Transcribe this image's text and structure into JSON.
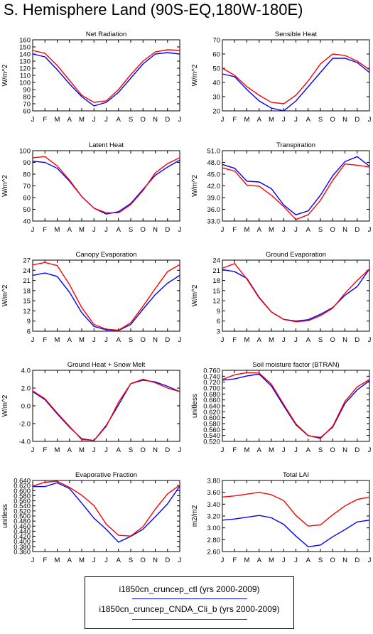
{
  "title": "S. Hemisphere Land (90S-EQ,180W-180E)",
  "colors": {
    "ctl": "#0000ff",
    "cnda": "#ff0000"
  },
  "legend": [
    {
      "label": "i1850cn_cruncep_ctl (yrs 2000-2009)",
      "color": "#0000ff"
    },
    {
      "label": "i1850cn_cruncep_CNDA_Cli_b (yrs 2000-2009)",
      "color": "#ff0000"
    }
  ],
  "chart_data": [
    {
      "type": "line",
      "title": "Net Radiation",
      "ylabel": "W/m^2",
      "yticks": [
        "60",
        "70",
        "80",
        "90",
        "100",
        "110",
        "120",
        "130",
        "140",
        "150",
        "160"
      ],
      "ylim": [
        60,
        160
      ],
      "x": [
        "J",
        "F",
        "M",
        "A",
        "M",
        "J",
        "J",
        "A",
        "S",
        "O",
        "N",
        "D",
        "J"
      ],
      "series": [
        {
          "values": [
            140,
            136,
            118,
            98,
            80,
            67,
            72,
            86,
            106,
            126,
            140,
            142,
            140
          ]
        },
        {
          "values": [
            145,
            141,
            124,
            103,
            82,
            72,
            74,
            90,
            111,
            130,
            143,
            146,
            145
          ]
        }
      ]
    },
    {
      "type": "line",
      "title": "Sensible Heat",
      "ylabel": "W/m^2",
      "yticks": [
        "20",
        "30",
        "40",
        "50",
        "60",
        "70"
      ],
      "ylim": [
        20,
        70
      ],
      "x": [
        "J",
        "F",
        "M",
        "A",
        "M",
        "J",
        "J",
        "A",
        "S",
        "O",
        "N",
        "D",
        "J"
      ],
      "series": [
        {
          "values": [
            46,
            44,
            35,
            27,
            22,
            20,
            27,
            37,
            47,
            57,
            57,
            54,
            47
          ]
        },
        {
          "values": [
            50,
            45,
            37,
            31,
            26,
            25,
            31,
            41,
            53,
            60,
            59,
            55,
            49
          ]
        }
      ]
    },
    {
      "type": "line",
      "title": "Latent Heat",
      "ylabel": "W/m^2",
      "yticks": [
        "40",
        "50",
        "60",
        "70",
        "80",
        "90",
        "100"
      ],
      "ylim": [
        40,
        100
      ],
      "x": [
        "J",
        "F",
        "M",
        "A",
        "M",
        "J",
        "J",
        "A",
        "S",
        "O",
        "N",
        "D",
        "J"
      ],
      "series": [
        {
          "values": [
            91,
            90,
            85,
            74,
            61,
            51,
            46,
            48,
            55,
            67,
            79,
            86,
            92
          ]
        },
        {
          "values": [
            94,
            95,
            87,
            75,
            61,
            51,
            47,
            47,
            54,
            66,
            81,
            89,
            94
          ]
        }
      ]
    },
    {
      "type": "line",
      "title": "Transpiration",
      "ylabel": "W/m^2",
      "yticks": [
        "33.0",
        "36.0",
        "39.0",
        "42.0",
        "45.0",
        "48.0",
        "51.0"
      ],
      "ylim": [
        33,
        51
      ],
      "x": [
        "J",
        "F",
        "M",
        "A",
        "M",
        "J",
        "J",
        "A",
        "S",
        "O",
        "N",
        "D",
        "J"
      ],
      "series": [
        {
          "values": [
            47.5,
            46.5,
            43.2,
            43.0,
            41.3,
            37.1,
            34.6,
            35.6,
            39.6,
            44.6,
            48.2,
            49.5,
            47.0
          ]
        },
        {
          "values": [
            46.6,
            45.8,
            42.2,
            41.9,
            39.6,
            36.7,
            33.4,
            34.6,
            38.3,
            43.4,
            47.6,
            47.3,
            46.8
          ]
        }
      ]
    },
    {
      "type": "line",
      "title": "Canopy Evaporation",
      "ylabel": "W/m^2",
      "yticks": [
        "6",
        "9",
        "12",
        "15",
        "18",
        "21",
        "24",
        "27"
      ],
      "ylim": [
        6,
        27
      ],
      "x": [
        "J",
        "F",
        "M",
        "A",
        "M",
        "J",
        "J",
        "A",
        "S",
        "O",
        "N",
        "D",
        "J"
      ],
      "series": [
        {
          "values": [
            22.5,
            23.2,
            22.2,
            17.5,
            11.5,
            7.4,
            6.4,
            6.2,
            8.0,
            12.5,
            16.8,
            20.2,
            22.5
          ]
        },
        {
          "values": [
            25.6,
            26.3,
            25.4,
            19.8,
            13.0,
            8.0,
            6.6,
            6.3,
            8.5,
            13.4,
            18.6,
            23.6,
            25.7
          ]
        }
      ]
    },
    {
      "type": "line",
      "title": "Ground Evaporation",
      "ylabel": "W/m^2",
      "yticks": [
        "3",
        "6",
        "9",
        "12",
        "15",
        "18",
        "21",
        "24"
      ],
      "ylim": [
        3,
        24
      ],
      "x": [
        "J",
        "F",
        "M",
        "A",
        "M",
        "J",
        "J",
        "A",
        "S",
        "O",
        "N",
        "D",
        "J"
      ],
      "series": [
        {
          "values": [
            21.2,
            20.6,
            18.6,
            13.0,
            8.7,
            6.5,
            6.0,
            6.4,
            8.0,
            10.0,
            13.6,
            16.2,
            21.4
          ]
        },
        {
          "values": [
            21.6,
            23.0,
            18.4,
            12.8,
            8.7,
            6.5,
            5.8,
            6.1,
            7.6,
            9.8,
            14.2,
            18.0,
            21.4
          ]
        }
      ]
    },
    {
      "type": "line",
      "title": "Ground Heat + Snow Melt",
      "ylabel": "W/m^2",
      "yticks": [
        "-4.0",
        "-2.0",
        "0.0",
        "2.0",
        "4.0"
      ],
      "ylim": [
        -4,
        4
      ],
      "x": [
        "J",
        "F",
        "M",
        "A",
        "M",
        "J",
        "J",
        "A",
        "S",
        "O",
        "N",
        "D",
        "J"
      ],
      "series": [
        {
          "values": [
            1.6,
            0.7,
            -0.9,
            -2.4,
            -3.7,
            -3.9,
            -2.2,
            0.1,
            2.5,
            2.9,
            2.7,
            2.2,
            1.6
          ]
        },
        {
          "values": [
            1.7,
            0.8,
            -0.8,
            -2.3,
            -3.8,
            -3.9,
            -2.3,
            0.4,
            2.5,
            3.0,
            2.6,
            2.0,
            1.6
          ]
        }
      ]
    },
    {
      "type": "line",
      "title": "Soil moisture factor (BTRAN)",
      "ylabel": "unitless",
      "yticks": [
        "0.520",
        "0.540",
        "0.560",
        "0.580",
        "0.600",
        "0.620",
        "0.640",
        "0.660",
        "0.680",
        "0.700",
        "0.720",
        "0.740",
        "0.760"
      ],
      "ylim": [
        0.52,
        0.76
      ],
      "x": [
        "J",
        "F",
        "M",
        "A",
        "M",
        "J",
        "J",
        "A",
        "S",
        "O",
        "N",
        "D",
        "J"
      ],
      "series": [
        {
          "values": [
            0.727,
            0.731,
            0.741,
            0.747,
            0.707,
            0.64,
            0.576,
            0.539,
            0.533,
            0.568,
            0.648,
            0.694,
            0.725
          ]
        },
        {
          "values": [
            0.729,
            0.745,
            0.752,
            0.751,
            0.713,
            0.645,
            0.579,
            0.54,
            0.53,
            0.571,
            0.655,
            0.704,
            0.729
          ]
        }
      ]
    },
    {
      "type": "line",
      "title": "Evaporative Fraction",
      "ylabel": "unitless",
      "yticks": [
        "0.360",
        "0.380",
        "0.400",
        "0.420",
        "0.440",
        "0.460",
        "0.480",
        "0.500",
        "0.520",
        "0.540",
        "0.560",
        "0.580",
        "0.600",
        "0.620",
        "0.640"
      ],
      "ylim": [
        0.36,
        0.64
      ],
      "x": [
        "J",
        "F",
        "M",
        "A",
        "M",
        "J",
        "J",
        "A",
        "S",
        "O",
        "N",
        "D",
        "J"
      ],
      "series": [
        {
          "values": [
            0.616,
            0.616,
            0.631,
            0.608,
            0.551,
            0.491,
            0.448,
            0.397,
            0.42,
            0.448,
            0.497,
            0.548,
            0.618
          ]
        },
        {
          "values": [
            0.618,
            0.633,
            0.637,
            0.613,
            0.582,
            0.541,
            0.468,
            0.424,
            0.421,
            0.458,
            0.527,
            0.587,
            0.622
          ]
        }
      ]
    },
    {
      "type": "line",
      "title": "Total LAI",
      "ylabel": "m2/m2",
      "yticks": [
        "2.60",
        "2.80",
        "3.00",
        "3.20",
        "3.40",
        "3.60",
        "3.80"
      ],
      "ylim": [
        2.6,
        3.8
      ],
      "x": [
        "J",
        "F",
        "M",
        "A",
        "M",
        "J",
        "J",
        "A",
        "S",
        "O",
        "N",
        "D",
        "J"
      ],
      "series": [
        {
          "values": [
            3.13,
            3.15,
            3.18,
            3.21,
            3.17,
            3.06,
            2.86,
            2.68,
            2.71,
            2.85,
            2.97,
            3.1,
            3.13
          ]
        },
        {
          "values": [
            3.52,
            3.54,
            3.57,
            3.6,
            3.56,
            3.46,
            3.21,
            3.03,
            3.05,
            3.22,
            3.37,
            3.48,
            3.52
          ]
        }
      ]
    }
  ]
}
